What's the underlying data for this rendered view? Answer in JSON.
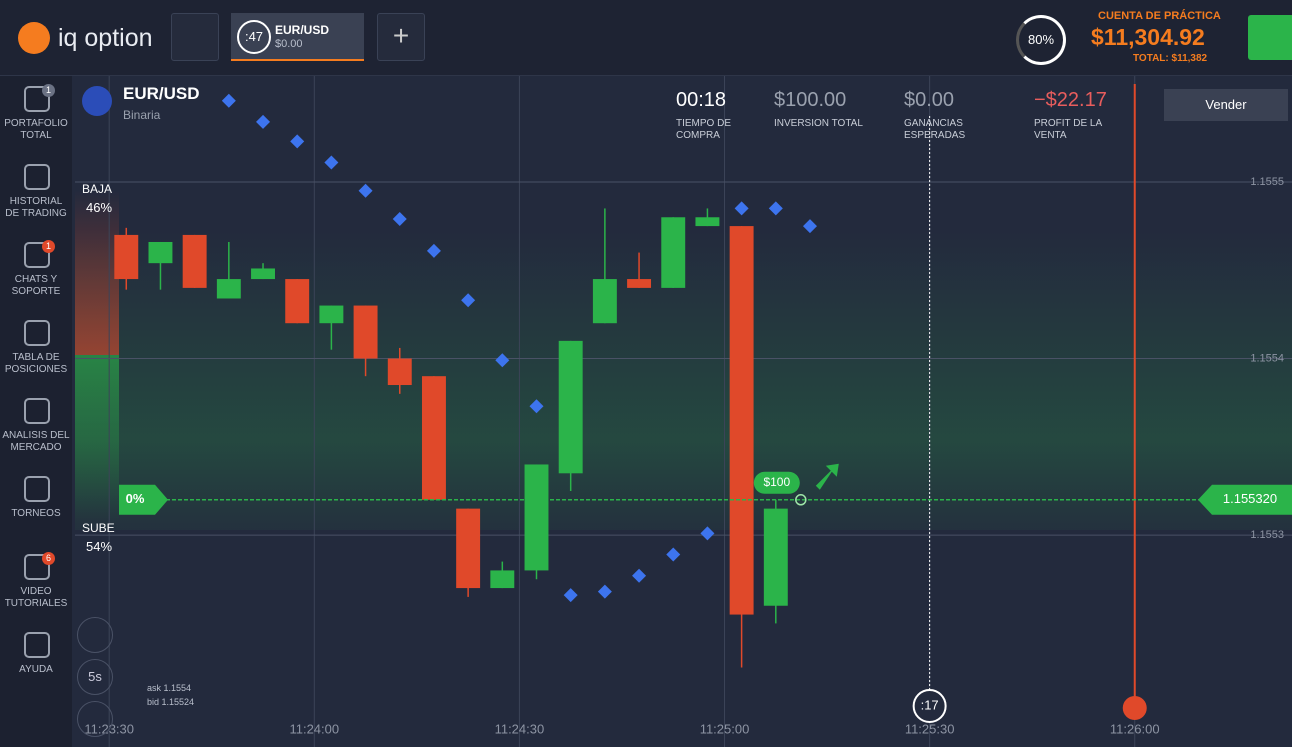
{
  "header": {
    "logo": "iq option",
    "tab": {
      "timer": ":47",
      "asset": "EUR/USD",
      "amount": "$0.00"
    },
    "level": "80%",
    "account": {
      "label": "CUENTA DE PRÁCTICA",
      "balance": "$11,304.92",
      "total": "TOTAL: $11,382"
    }
  },
  "sidebar": [
    {
      "label": "PORTAFOLIO TOTAL",
      "badge": "1"
    },
    {
      "label": "HISTORIAL DE TRADING"
    },
    {
      "label": "CHATS Y SOPORTE",
      "badge": "1"
    },
    {
      "label": "TABLA DE POSICIONES"
    },
    {
      "label": "ANALISIS DEL MERCADO"
    },
    {
      "label": "TORNEOS"
    },
    {
      "label": "VIDEO TUTORIALES",
      "badge": "6"
    },
    {
      "label": "AYUDA"
    }
  ],
  "asset": {
    "name": "EUR/USD",
    "type": "Binaria"
  },
  "trade_info": [
    {
      "value": "00:18",
      "label": "TIEMPO DE COMPRA"
    },
    {
      "value": "$100.00",
      "label": "INVERSION TOTAL"
    },
    {
      "value": "$0.00",
      "label": "GANANCIAS ESPERADAS"
    },
    {
      "value": "−$22.17",
      "label": "PROFIT DE LA VENTA"
    }
  ],
  "sell_button": "Vender",
  "sentiment": {
    "down_label": "BAJA",
    "down": "46%",
    "up_label": "SUBE",
    "up": "54%"
  },
  "tools": {
    "timeframe": "5s",
    "ask": "ask 1.1554",
    "bid": "bid 1.15524"
  },
  "chart_data": {
    "type": "candlestick",
    "x": [
      "11:23:30",
      "11:23:35",
      "11:23:40",
      "11:23:45",
      "11:23:50",
      "11:23:55",
      "11:24:00",
      "11:24:05",
      "11:24:10",
      "11:24:15",
      "11:24:20",
      "11:24:25",
      "11:24:30",
      "11:24:35",
      "11:24:40",
      "11:24:45",
      "11:24:50",
      "11:24:55",
      "11:25:00",
      "11:25:05"
    ],
    "open": [
      1.15547,
      1.155454,
      1.15547,
      1.155434,
      1.155445,
      1.155445,
      1.15542,
      1.15543,
      1.1554,
      1.15539,
      1.155315,
      1.15527,
      1.15528,
      1.155335,
      1.15542,
      1.155445,
      1.15544,
      1.155475,
      1.155475,
      1.15526
    ],
    "high": [
      1.155474,
      1.155466,
      1.15547,
      1.155466,
      1.155454,
      1.155445,
      1.15543,
      1.15543,
      1.155406,
      1.15539,
      1.155315,
      1.155285,
      1.15534,
      1.15541,
      1.155485,
      1.15546,
      1.15548,
      1.155485,
      1.155475,
      1.15532
    ],
    "low": [
      1.155439,
      1.155439,
      1.15544,
      1.155434,
      1.155445,
      1.15542,
      1.155405,
      1.15539,
      1.15538,
      1.15532,
      1.155265,
      1.15527,
      1.155275,
      1.155325,
      1.15542,
      1.15544,
      1.15544,
      1.155475,
      1.155225,
      1.15525
    ],
    "close": [
      1.155445,
      1.155466,
      1.15544,
      1.155445,
      1.155451,
      1.15542,
      1.15543,
      1.1554,
      1.155385,
      1.15532,
      1.15527,
      1.15528,
      1.15534,
      1.15541,
      1.155445,
      1.15544,
      1.15548,
      1.15548,
      1.155255,
      1.155315
    ],
    "up_color": "#2bb44a",
    "down_color": "#e0492a",
    "sar": {
      "x": [
        "11:23:45",
        "11:23:50",
        "11:23:55",
        "11:24:00",
        "11:24:05",
        "11:24:10",
        "11:24:15",
        "11:24:20",
        "11:24:25",
        "11:24:30",
        "11:24:35",
        "11:24:40",
        "11:24:45",
        "11:24:50",
        "11:24:55",
        "11:25:00",
        "11:25:05",
        "11:25:10"
      ],
      "values": [
        1.155546,
        1.155534,
        1.155523,
        1.155511,
        1.155495,
        1.155479,
        1.155461,
        1.155433,
        1.155399,
        1.155373,
        1.155266,
        1.155268,
        1.155277,
        1.155289,
        1.155301,
        1.155485,
        1.155485,
        1.155475
      ],
      "color": "#3d74ee"
    },
    "xlim": [
      "11:23:25",
      "11:26:23"
    ],
    "xticks": [
      "11:23:30",
      "11:24:00",
      "11:24:30",
      "11:25:00",
      "11:25:30",
      "11:26:00"
    ],
    "ylim": [
      1.15518,
      1.15556
    ],
    "yticks": [
      1.1555,
      1.1554,
      1.1553
    ],
    "grid": true,
    "current_price": {
      "value": 1.15532,
      "label": "1.155320"
    },
    "profit_percent": "0%",
    "investment_bubble": "$100",
    "timer": ":17"
  }
}
